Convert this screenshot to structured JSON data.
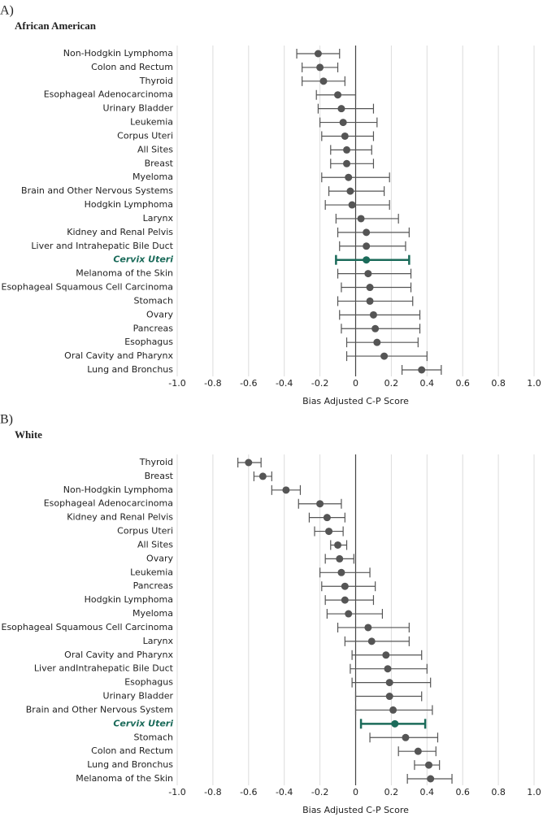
{
  "chart_data": [
    {
      "type": "forest",
      "panel": "A)",
      "title": "African American",
      "x_label": "Bias Adjusted C-P Score",
      "categories": [
        "Non-Hodgkin Lymphoma",
        "Colon and Rectum",
        "Thyroid",
        "Esophageal Adenocarcinoma",
        "Urinary Bladder",
        "Leukemia",
        "Corpus Uteri",
        "All Sites",
        "Breast",
        "Myeloma",
        "Brain and Other Nervous Systems",
        "Hodgkin Lymphoma",
        "Larynx",
        "Kidney and Renal Pelvis",
        "Liver and Intrahepatic Bile Duct",
        "Cervix Uteri",
        "Melanoma of the Skin",
        "Esophageal Squamous Cell Carcinoma",
        "Stomach",
        "Ovary",
        "Pancreas",
        "Esophagus",
        "Oral Cavity and Pharynx",
        "Lung and Bronchus"
      ],
      "values": [
        -0.21,
        -0.2,
        -0.18,
        -0.1,
        -0.08,
        -0.07,
        -0.06,
        -0.05,
        -0.05,
        -0.04,
        -0.03,
        -0.02,
        0.03,
        0.06,
        0.06,
        0.06,
        0.07,
        0.08,
        0.08,
        0.1,
        0.11,
        0.12,
        0.16,
        0.37
      ],
      "lower": [
        -0.33,
        -0.3,
        -0.3,
        -0.22,
        -0.21,
        -0.2,
        -0.19,
        -0.14,
        -0.14,
        -0.19,
        -0.15,
        -0.17,
        -0.11,
        -0.1,
        -0.09,
        -0.11,
        -0.1,
        -0.08,
        -0.1,
        -0.09,
        -0.08,
        -0.05,
        -0.05,
        0.26
      ],
      "upper": [
        -0.09,
        -0.1,
        -0.06,
        0.0,
        0.1,
        0.12,
        0.1,
        0.09,
        0.1,
        0.19,
        0.16,
        0.19,
        0.24,
        0.3,
        0.28,
        0.3,
        0.31,
        0.31,
        0.32,
        0.36,
        0.36,
        0.35,
        0.4,
        0.48
      ],
      "color": "#555555",
      "highlight_index": 15,
      "highlight_color": "#1b6b5a",
      "xlim": [
        -1,
        1
      ],
      "xticks": [
        {
          "value": -1,
          "label": "-1.0"
        },
        -0.8,
        -0.6,
        -0.4,
        -0.2,
        0,
        0.2,
        0.4,
        0.6,
        0.8,
        {
          "value": 1,
          "label": "1.0"
        }
      ],
      "grid": true
    },
    {
      "type": "forest",
      "panel": "B)",
      "title": "White",
      "x_label": "Bias Adjusted C-P Score",
      "categories": [
        "Thyroid",
        "Breast",
        "Non-Hodgkin Lymphoma",
        "Esophageal Adenocarcinoma",
        "Kidney and Renal Pelvis",
        "Corpus Uteri",
        "All Sites",
        "Ovary",
        "Leukemia",
        "Pancreas",
        "Hodgkin Lymphoma",
        "Myeloma",
        "Esophageal Squamous Cell Carcinoma",
        "Larynx",
        "Oral Cavity and Pharynx",
        "Liver andIntrahepatic Bile Duct",
        "Esophagus",
        "Urinary Bladder",
        "Brain and Other Nervous System",
        "Cervix Uteri",
        "Stomach",
        "Colon and Rectum",
        "Lung and Bronchus",
        "Melanoma of the Skin"
      ],
      "values": [
        -0.6,
        -0.52,
        -0.39,
        -0.2,
        -0.16,
        -0.15,
        -0.1,
        -0.09,
        -0.08,
        -0.06,
        -0.06,
        -0.04,
        0.07,
        0.09,
        0.17,
        0.18,
        0.19,
        0.19,
        0.21,
        0.22,
        0.28,
        0.35,
        0.41,
        0.42
      ],
      "lower": [
        -0.66,
        -0.57,
        -0.47,
        -0.32,
        -0.26,
        -0.23,
        -0.14,
        -0.17,
        -0.2,
        -0.19,
        -0.17,
        -0.16,
        -0.1,
        -0.06,
        -0.02,
        -0.03,
        -0.02,
        0.0,
        0.0,
        0.03,
        0.08,
        0.24,
        0.33,
        0.29
      ],
      "upper": [
        -0.53,
        -0.47,
        -0.31,
        -0.08,
        -0.06,
        -0.07,
        -0.05,
        -0.01,
        0.08,
        0.11,
        0.1,
        0.15,
        0.3,
        0.3,
        0.37,
        0.4,
        0.42,
        0.37,
        0.43,
        0.39,
        0.46,
        0.45,
        0.47,
        0.54
      ],
      "color": "#555555",
      "highlight_index": 19,
      "highlight_color": "#1b6b5a",
      "xlim": [
        -1,
        1
      ],
      "xticks": [
        {
          "value": -1,
          "label": "-1.0"
        },
        -0.8,
        -0.6,
        -0.4,
        -0.2,
        0,
        0.2,
        0.4,
        0.6,
        0.8,
        {
          "value": 1,
          "label": "1.0"
        }
      ],
      "grid": true
    }
  ]
}
